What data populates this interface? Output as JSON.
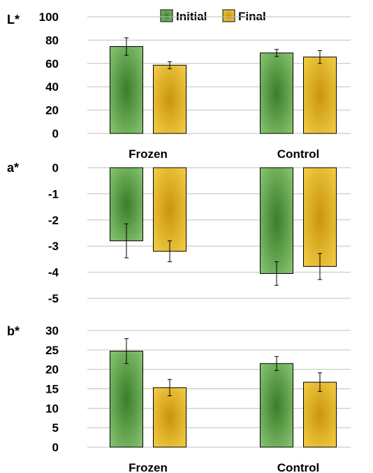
{
  "chart_data": {
    "type": "bar",
    "categories": [
      "Frozen",
      "Control"
    ],
    "legend": {
      "placement": "top",
      "entries": [
        {
          "name": "Initial",
          "color": "#6aa84f"
        },
        {
          "name": "Final",
          "color": "#e6b422"
        }
      ]
    },
    "colors": {
      "initial_edge": "#8fcb77",
      "initial_center": "#3a7d2a",
      "final_edge": "#f7d24c",
      "final_center": "#c9950c"
    },
    "panels": [
      {
        "label": "L*",
        "ylim": [
          0,
          100
        ],
        "yticks": [
          "100",
          "80",
          "60",
          "40",
          "20",
          "0"
        ],
        "series": [
          {
            "name": "Initial",
            "values": [
              74.5,
              69
            ],
            "errors": [
              7.5,
              3
            ]
          },
          {
            "name": "Final",
            "values": [
              58.5,
              65.5
            ],
            "errors": [
              3,
              5.5
            ]
          }
        ],
        "category_labels": [
          "Frozen",
          "Control"
        ]
      },
      {
        "label": "a*",
        "ylim": [
          -5,
          0
        ],
        "yticks": [
          "0",
          "-1",
          "-2",
          "-3",
          "-4",
          "-5"
        ],
        "series": [
          {
            "name": "Initial",
            "values": [
              -2.8,
              -4.05
            ],
            "errors": [
              0.65,
              0.45
            ]
          },
          {
            "name": "Final",
            "values": [
              -3.2,
              -3.78
            ],
            "errors": [
              0.4,
              0.5
            ]
          }
        ],
        "category_labels": []
      },
      {
        "label": "b*",
        "ylim": [
          0,
          30
        ],
        "yticks": [
          "30",
          "25",
          "20",
          "15",
          "10",
          "5",
          "0"
        ],
        "series": [
          {
            "name": "Initial",
            "values": [
              24.7,
              21.5
            ],
            "errors": [
              3.2,
              1.8
            ]
          },
          {
            "name": "Final",
            "values": [
              15.3,
              16.7
            ],
            "errors": [
              2.1,
              2.4
            ]
          }
        ],
        "category_labels": [
          "Frozen",
          "Control"
        ]
      }
    ]
  }
}
